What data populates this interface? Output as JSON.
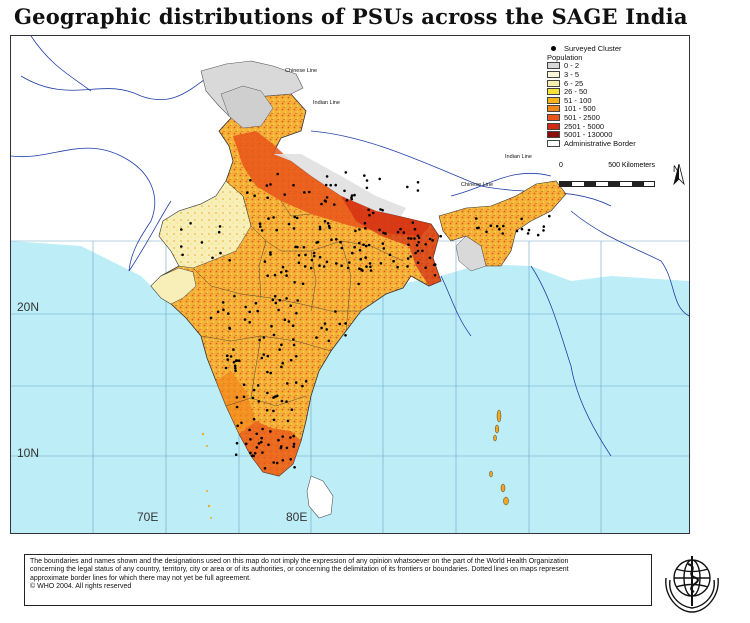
{
  "title": "Geographic distributions of PSUs across the SAGE India",
  "legend": {
    "surveyed_cluster": "Surveyed Cluster",
    "population_header": "Population",
    "classes": [
      {
        "label": "0 - 2",
        "color": "#d9d9d9"
      },
      {
        "label": "3 - 5",
        "color": "#fbf6d8"
      },
      {
        "label": "6 - 25",
        "color": "#f7eeb0"
      },
      {
        "label": "26 - 50",
        "color": "#f7e23a"
      },
      {
        "label": "51 - 100",
        "color": "#f7b21c"
      },
      {
        "label": "101 - 500",
        "color": "#f2861a"
      },
      {
        "label": "501 - 2500",
        "color": "#e8541a"
      },
      {
        "label": "2501 - 5000",
        "color": "#d12a12"
      },
      {
        "label": "5001 - 130000",
        "color": "#8b0d08"
      }
    ],
    "admin_border": "Administrative Border"
  },
  "scale": {
    "zero": "0",
    "distance": "500",
    "unit": "Kilometers"
  },
  "north": "N",
  "coords": {
    "lat20": "20N",
    "lat10": "10N",
    "lon70": "70E",
    "lon80": "80E"
  },
  "map_labels": {
    "chinese_line": "Chinese Line",
    "indian_line": "Indian Line"
  },
  "disclaimer": {
    "line1": "The boundaries and names shown and the designations used on this map do not imply the expression of any opinion whatsoever on the part of the World Health Organization",
    "line2": "concerning the legal status of any country, territory, city or area or of its authorities, or concerning the delimitation of its frontiers or boundaries. Dotted lines on maps represent",
    "line3": "approximate border lines for which there may not yet be full agreement.",
    "line4": "© WHO 2004. All rights reserved"
  },
  "colors": {
    "sea": "#bdeef8",
    "land_outside": "#ffffff",
    "grid": "#6aa7c4",
    "border": "#1f3fa6"
  }
}
